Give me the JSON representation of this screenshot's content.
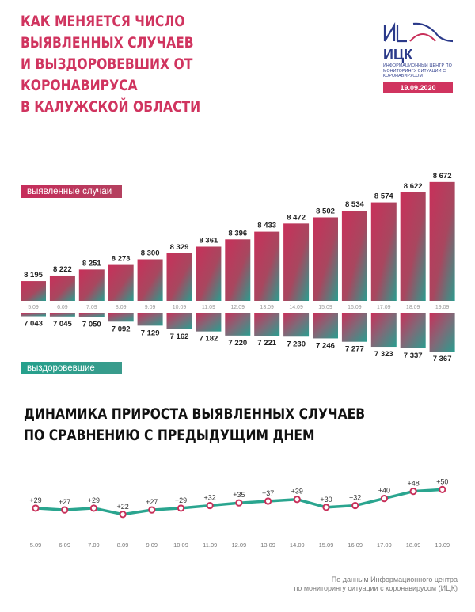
{
  "title": "КАК МЕНЯЕТСЯ ЧИСЛО ВЫЯВЛЕННЫХ СЛУЧАЕВ\nИ ВЫЗДОРОВЕВШИХ ОТ КОРОНАВИРУСА\nВ КАЛУЖСКОЙ ОБЛАСТИ",
  "subtitle": "ДИНАМИКА ПРИРОСТА ВЫЯВЛЕННЫХ СЛУЧАЕВ\nПО СРАВНЕНИЮ С ПРЕДЫДУЩИМ ДНЕМ",
  "logo": {
    "name": "ИЦК",
    "text": "ИНФОРМАЦИОННЫЙ ЦЕНТР ПО МОНИТОРИНГУ СИТУАЦИИ С КОРОНАВИРУСОМ",
    "date": "19.09.2020"
  },
  "labels": {
    "cases": "выявленные случаи",
    "recovered": "выздоровевшие"
  },
  "footnote": "По данным Информационного центра\nпо мониторингу ситуации с коронавирусом (ИЦК)",
  "colors": {
    "accent": "#d0345f",
    "teal": "#2a9d8f",
    "logo": "#2b3a8a",
    "line": "#2aa58f",
    "marker": "#c8305a"
  },
  "chart_data": [
    {
      "type": "bar",
      "categories": [
        "5.09",
        "6.09",
        "7.09",
        "8.09",
        "9.09",
        "10.09",
        "11.09",
        "12.09",
        "13.09",
        "14.09",
        "15.09",
        "16.09",
        "17.09",
        "18.09",
        "19.09"
      ],
      "series": [
        {
          "name": "выявленные случаи",
          "values": [
            8195,
            8222,
            8251,
            8273,
            8300,
            8329,
            8361,
            8396,
            8433,
            8472,
            8502,
            8534,
            8574,
            8622,
            8672
          ],
          "labels": [
            "8 195",
            "8 222",
            "8 251",
            "8 273",
            "8 300",
            "8 329",
            "8 361",
            "8 396",
            "8 433",
            "8 472",
            "8 502",
            "8 534",
            "8 574",
            "8 622",
            "8 672"
          ]
        },
        {
          "name": "выздоровевшие",
          "values": [
            7043,
            7045,
            7050,
            7092,
            7129,
            7162,
            7182,
            7220,
            7221,
            7230,
            7246,
            7277,
            7323,
            7337,
            7367
          ],
          "labels": [
            "7 043",
            "7 045",
            "7 050",
            "7 092",
            "7 129",
            "7 162",
            "7 182",
            "7 220",
            "7 221",
            "7 230",
            "7 246",
            "7 277",
            "7 323",
            "7 337",
            "7 367"
          ]
        }
      ]
    },
    {
      "type": "line",
      "title": "ДИНАМИКА ПРИРОСТА ВЫЯВЛЕННЫХ СЛУЧАЕВ ПО СРАВНЕНИЮ С ПРЕДЫДУЩИМ ДНЕМ",
      "categories": [
        "5.09",
        "6.09",
        "7.09",
        "8.09",
        "9.09",
        "10.09",
        "11.09",
        "12.09",
        "13.09",
        "14.09",
        "15.09",
        "16.09",
        "17.09",
        "18.09",
        "19.09"
      ],
      "values": [
        29,
        27,
        29,
        22,
        27,
        29,
        32,
        35,
        37,
        39,
        30,
        32,
        40,
        48,
        50
      ],
      "labels": [
        "+29",
        "+27",
        "+29",
        "+22",
        "+27",
        "+29",
        "+32",
        "+35",
        "+37",
        "+39",
        "+30",
        "+32",
        "+40",
        "+48",
        "+50"
      ]
    }
  ]
}
